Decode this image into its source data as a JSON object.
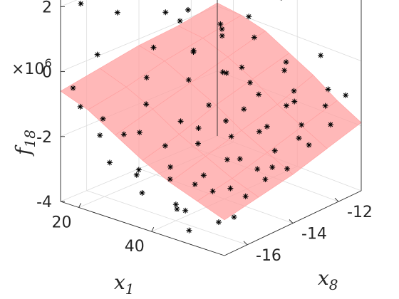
{
  "chart_data": {
    "type": "scatter3d",
    "surface_color": "#ffa0a0",
    "marker_color": "#000000",
    "marker": "asterisk",
    "grid": true,
    "axes": {
      "x": {
        "label": "x",
        "subscript": "1",
        "ticks": [
          "20",
          "40"
        ],
        "tick_values": [
          20,
          40
        ],
        "lim": [
          15,
          60
        ]
      },
      "y": {
        "label": "x",
        "subscript": "8",
        "ticks": [
          "-16",
          "-14",
          "-12"
        ],
        "tick_values": [
          -16,
          -14,
          -12
        ],
        "lim": [
          -17,
          -11
        ]
      },
      "z": {
        "label": "f",
        "subscript": "18",
        "ticks": [
          "-4",
          "-2",
          "0",
          "2"
        ],
        "tick_values": [
          -4,
          -2,
          0,
          2
        ],
        "lim": [
          -4,
          3
        ],
        "exponent": "×10",
        "exponent_power": "6"
      }
    },
    "surface_z": [
      [
        -0.6,
        -0.9,
        -1.4,
        -1.9,
        -2.3,
        -2.6,
        -2.9
      ],
      [
        -0.4,
        -0.7,
        -1.1,
        -1.6,
        -2.0,
        -2.4,
        -2.7
      ],
      [
        -0.2,
        -0.4,
        -0.8,
        -1.2,
        -1.7,
        -2.1,
        -2.5
      ],
      [
        -0.1,
        -0.2,
        -0.5,
        -0.9,
        -1.4,
        -1.8,
        -2.2
      ],
      [
        0.1,
        0.0,
        -0.2,
        -0.6,
        -1.0,
        -1.5,
        -1.9
      ]
    ],
    "points": [
      [
        17,
        -16.8,
        -0.5
      ],
      [
        17,
        -16.5,
        2.0
      ],
      [
        18,
        -16.0,
        0.3
      ],
      [
        19,
        -16.8,
        -1.0
      ],
      [
        20,
        -15.5,
        1.5
      ],
      [
        21,
        -16.2,
        -1.5
      ],
      [
        22,
        -15.0,
        2.5
      ],
      [
        23,
        -14.5,
        0.2
      ],
      [
        24,
        -15.8,
        -2.0
      ],
      [
        25,
        -16.5,
        -2.6
      ],
      [
        26,
        -15.2,
        -1.2
      ],
      [
        27,
        -14.0,
        1.0
      ],
      [
        28,
        -13.5,
        2.8
      ],
      [
        29,
        -16.0,
        -3.0
      ],
      [
        30,
        -15.0,
        -2.4
      ],
      [
        31,
        -14.2,
        -0.6
      ],
      [
        32,
        -13.0,
        0.6
      ],
      [
        33,
        -12.0,
        2.2
      ],
      [
        34,
        -16.5,
        -3.2
      ],
      [
        35,
        -15.5,
        -2.7
      ],
      [
        36,
        -14.5,
        -1.8
      ],
      [
        37,
        -13.5,
        -0.4
      ],
      [
        38,
        -12.5,
        0.4
      ],
      [
        39,
        -11.5,
        2.6
      ],
      [
        40,
        -16.0,
        -3.5
      ],
      [
        41,
        -15.0,
        -2.9
      ],
      [
        42,
        -14.0,
        -2.0
      ],
      [
        43,
        -13.0,
        -1.0
      ],
      [
        44,
        -12.0,
        -0.3
      ],
      [
        45,
        -11.3,
        1.8
      ],
      [
        46,
        -16.5,
        -3.3
      ],
      [
        47,
        -15.5,
        -3.0
      ],
      [
        48,
        -14.5,
        -2.3
      ],
      [
        49,
        -13.5,
        -1.6
      ],
      [
        50,
        -12.5,
        -0.8
      ],
      [
        51,
        -11.5,
        0.0
      ],
      [
        52,
        -16.0,
        -3.6
      ],
      [
        53,
        -15.0,
        -3.1
      ],
      [
        54,
        -14.0,
        -2.5
      ],
      [
        55,
        -13.0,
        -1.9
      ],
      [
        56,
        -12.0,
        -1.2
      ],
      [
        57,
        -11.2,
        2.4
      ],
      [
        18,
        -12.5,
        0.5
      ],
      [
        20,
        -11.5,
        -0.2
      ],
      [
        22,
        -12.8,
        -0.5
      ],
      [
        24,
        -11.8,
        2.7
      ],
      [
        26,
        -12.2,
        -0.1
      ],
      [
        28,
        -11.4,
        0.3
      ],
      [
        30,
        -12.7,
        -0.9
      ],
      [
        32,
        -11.6,
        1.2
      ],
      [
        34,
        -13.8,
        -1.4
      ],
      [
        36,
        -12.4,
        -1.1
      ],
      [
        38,
        -14.8,
        -2.1
      ],
      [
        40,
        -13.2,
        -1.5
      ],
      [
        42,
        -11.8,
        -0.7
      ],
      [
        44,
        -15.8,
        -2.8
      ],
      [
        46,
        -13.4,
        -1.9
      ],
      [
        48,
        -12.2,
        -1.3
      ],
      [
        50,
        -15.2,
        -2.9
      ],
      [
        52,
        -13.6,
        -2.2
      ],
      [
        54,
        -11.6,
        -0.9
      ],
      [
        56,
        -14.6,
        -2.6
      ],
      [
        58,
        -13.0,
        -2.0
      ],
      [
        58,
        -11.4,
        -1.0
      ],
      [
        19,
        -13.5,
        0.8
      ],
      [
        21,
        -14.5,
        -0.8
      ],
      [
        23,
        -16.6,
        -1.8
      ],
      [
        25,
        -13.2,
        -0.3
      ],
      [
        27,
        -15.6,
        -1.9
      ],
      [
        29,
        -12.8,
        1.9
      ],
      [
        31,
        -16.2,
        -2.7
      ],
      [
        33,
        -14.8,
        -1.6
      ],
      [
        35,
        -12.6,
        -0.6
      ],
      [
        37,
        -15.8,
        -2.9
      ],
      [
        39,
        -13.8,
        -1.7
      ],
      [
        41,
        -11.8,
        1.5
      ],
      [
        43,
        -16.4,
        -3.4
      ],
      [
        45,
        -14.6,
        -2.4
      ],
      [
        47,
        -12.4,
        -1.4
      ],
      [
        49,
        -16.8,
        -3.7
      ],
      [
        51,
        -14.2,
        -2.6
      ],
      [
        53,
        -12.6,
        -1.7
      ],
      [
        55,
        -15.8,
        -3.4
      ],
      [
        57,
        -13.8,
        -2.5
      ],
      [
        59,
        -12.2,
        -1.6
      ]
    ]
  }
}
